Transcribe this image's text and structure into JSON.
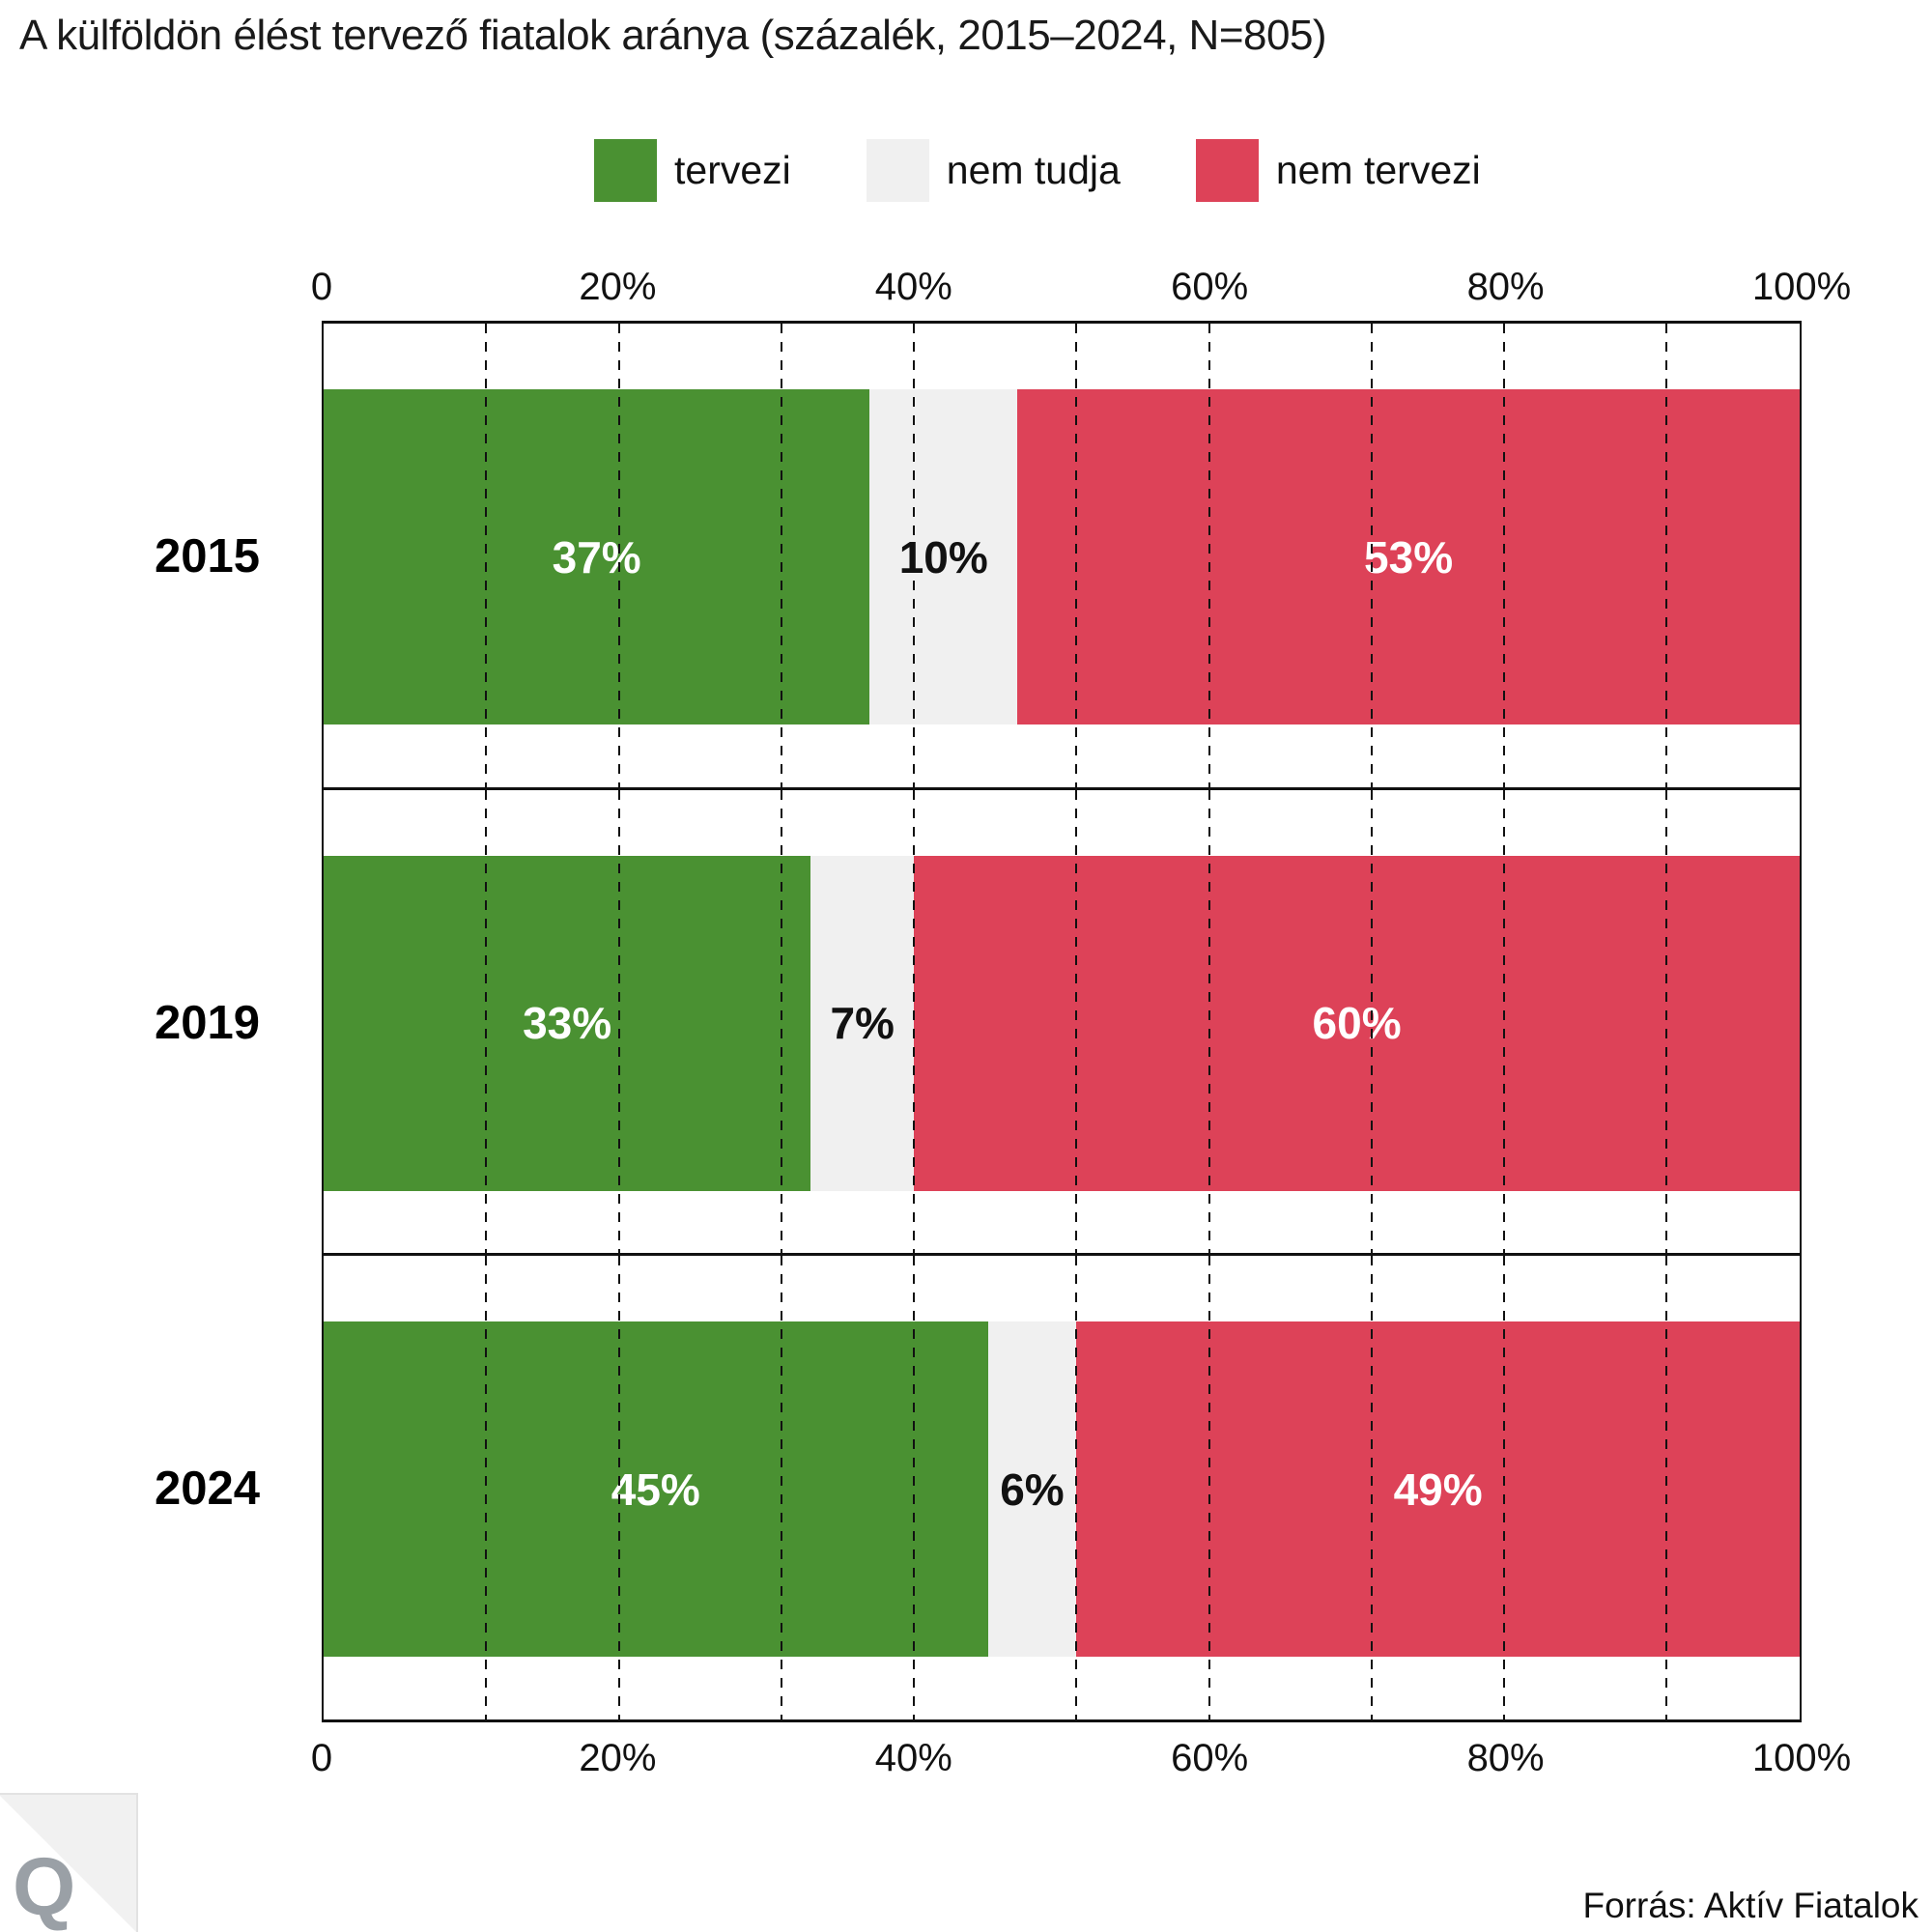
{
  "title": "A külföldön élést tervező fiatalok aránya (százalék, 2015–2024, N=805)",
  "source": "Forrás: Aktív Fiatalok",
  "logo": {
    "letter": "Q"
  },
  "colors": {
    "green": "#4a9132",
    "gray": "#f0f0f0",
    "red": "#dd4258",
    "grid": "#111111",
    "text": "#1a1a1a",
    "logo_letter": "#9aa0a6",
    "logo_triangle": "#f1f1f1"
  },
  "legend": [
    {
      "label": "tervezi",
      "color": "#4a9132"
    },
    {
      "label": "nem tudja",
      "color": "#f0f0f0"
    },
    {
      "label": "nem tervezi",
      "color": "#dd4258"
    }
  ],
  "chart_data": {
    "type": "bar",
    "orientation": "horizontal-stacked",
    "title": "A külföldön élést tervező fiatalok aránya (százalék, 2015–2024, N=805)",
    "categories": [
      "2015",
      "2019",
      "2024"
    ],
    "series": [
      {
        "name": "tervezi",
        "color": "#4a9132",
        "label_color": "#ffffff",
        "values": [
          37,
          33,
          45
        ]
      },
      {
        "name": "nem tudja",
        "color": "#f0f0f0",
        "label_color": "#111111",
        "values": [
          10,
          7,
          6
        ]
      },
      {
        "name": "nem tervezi",
        "color": "#dd4258",
        "label_color": "#ffffff",
        "values": [
          53,
          60,
          49
        ]
      }
    ],
    "value_suffix": "%",
    "xlim": [
      0,
      100
    ],
    "x_axis": {
      "ticks": [
        {
          "value": 0,
          "label": "0"
        },
        {
          "value": 20,
          "label": "20%"
        },
        {
          "value": 40,
          "label": "40%"
        },
        {
          "value": 60,
          "label": "60%"
        },
        {
          "value": 80,
          "label": "80%"
        },
        {
          "value": 100,
          "label": "100%"
        }
      ],
      "shown_top": true,
      "shown_bottom": true
    },
    "gridlines": {
      "major": [
        20,
        40,
        60,
        80
      ],
      "minor": [
        11,
        31,
        51,
        71,
        91
      ],
      "style": "dashed"
    },
    "legend_position": "top-center",
    "n": 805
  }
}
